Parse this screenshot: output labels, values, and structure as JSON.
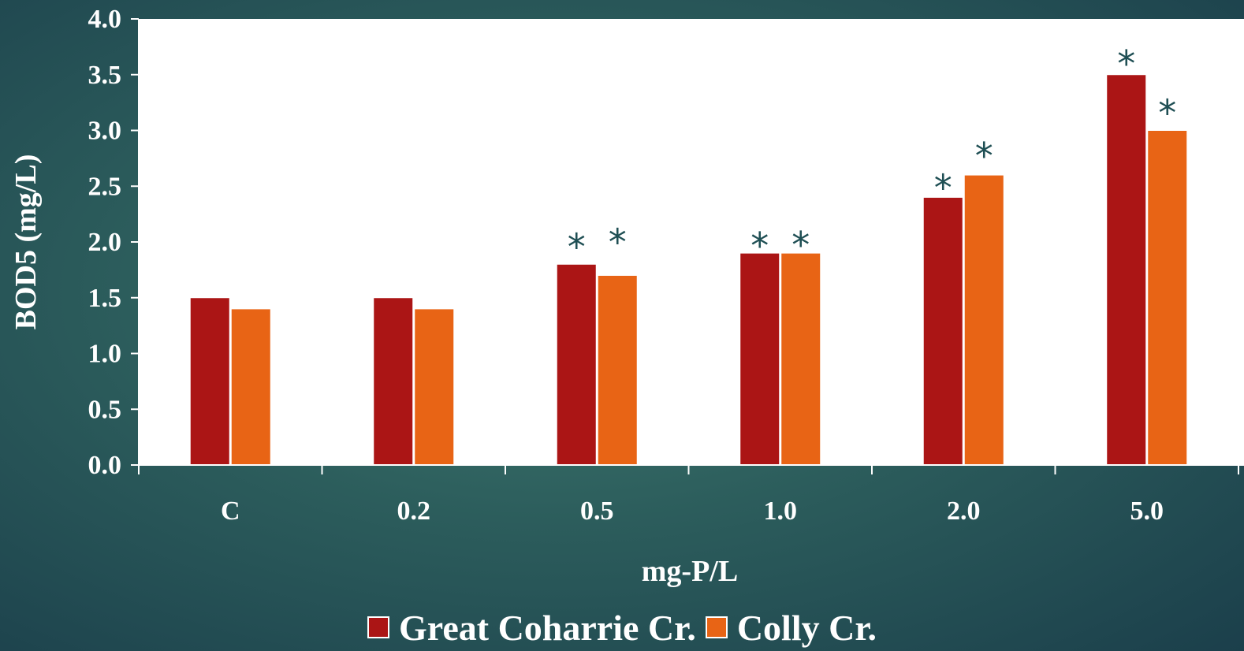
{
  "chart_data": {
    "type": "bar",
    "categories": [
      "C",
      "0.2",
      "0.5",
      "1.0",
      "2.0",
      "5.0"
    ],
    "series": [
      {
        "name": "Great Coharrie Cr.",
        "color": "#ab1515",
        "values": [
          1.5,
          1.5,
          1.8,
          1.9,
          2.4,
          3.5
        ],
        "significant": [
          false,
          false,
          true,
          true,
          true,
          true
        ]
      },
      {
        "name": "Colly Cr.",
        "color": "#e86415",
        "values": [
          1.4,
          1.4,
          1.7,
          1.9,
          2.6,
          3.0
        ],
        "significant": [
          false,
          false,
          true,
          true,
          true,
          true
        ]
      }
    ],
    "xlabel": "mg-P/L",
    "ylabel": "BOD5 (mg/L)",
    "ylim": [
      0,
      4.0
    ],
    "yticks": [
      "0.0",
      "0.5",
      "1.0",
      "1.5",
      "2.0",
      "2.5",
      "3.0",
      "3.5",
      "4.0"
    ],
    "significance_marker": "*",
    "grid": false,
    "legend_position": "bottom"
  }
}
